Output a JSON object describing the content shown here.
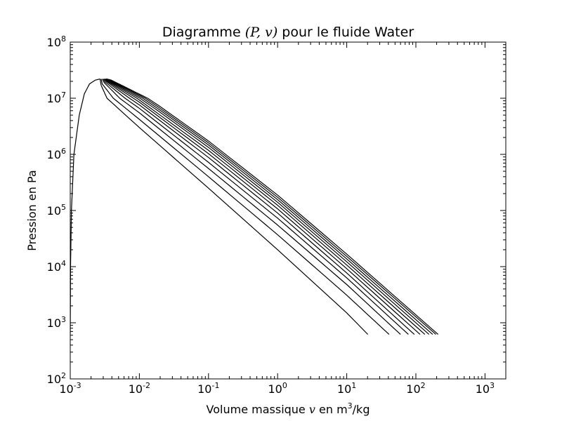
{
  "chart_data": {
    "type": "line",
    "title_parts": [
      "Diagramme ",
      "(P, v)",
      " pour le fluide Water"
    ],
    "xlabel_parts": [
      "Volume massique ",
      "v",
      " en m",
      "3",
      "/kg"
    ],
    "ylabel": "Pression en Pa",
    "xscale": "log",
    "yscale": "log",
    "xlim": [
      0.001,
      2000
    ],
    "ylim": [
      100,
      100000000
    ],
    "x_ticks": [
      {
        "base": "10",
        "exp": "-3",
        "value": 0.001
      },
      {
        "base": "10",
        "exp": "-2",
        "value": 0.01
      },
      {
        "base": "10",
        "exp": "-1",
        "value": 0.1
      },
      {
        "base": "10",
        "exp": "0",
        "value": 1
      },
      {
        "base": "10",
        "exp": "1",
        "value": 10
      },
      {
        "base": "10",
        "exp": "2",
        "value": 100
      },
      {
        "base": "10",
        "exp": "3",
        "value": 1000
      }
    ],
    "y_ticks": [
      {
        "base": "10",
        "exp": "2",
        "value": 100
      },
      {
        "base": "10",
        "exp": "3",
        "value": 1000
      },
      {
        "base": "10",
        "exp": "4",
        "value": 10000
      },
      {
        "base": "10",
        "exp": "5",
        "value": 100000
      },
      {
        "base": "10",
        "exp": "6",
        "value": 1000000
      },
      {
        "base": "10",
        "exp": "7",
        "value": 10000000
      },
      {
        "base": "10",
        "exp": "8",
        "value": 100000000
      }
    ],
    "grid": false,
    "line_color": "#000000",
    "series": [
      {
        "points": [
          [
            0.001,
            620
          ],
          [
            0.00101,
            10000
          ],
          [
            0.00104,
            100000
          ],
          [
            0.00113,
            1000000
          ],
          [
            0.00135,
            5000000
          ],
          [
            0.0016,
            12000000
          ],
          [
            0.0019,
            18000000
          ],
          [
            0.0023,
            21000000
          ],
          [
            0.0027,
            22060000
          ]
        ]
      },
      {
        "points": [
          [
            0.0027,
            22060000
          ],
          [
            0.0028,
            17000000
          ],
          [
            0.0034,
            10000000
          ],
          [
            0.01,
            3000000
          ],
          [
            0.1,
            250000
          ],
          [
            1,
            20000
          ],
          [
            10,
            1500
          ],
          [
            20.2,
            620
          ]
        ]
      },
      {
        "points": [
          [
            0.0028,
            22060000
          ],
          [
            0.0029,
            18000000
          ],
          [
            0.0042,
            10000000
          ],
          [
            0.01,
            4200000
          ],
          [
            0.1,
            400000
          ],
          [
            1,
            37000
          ],
          [
            10,
            3100
          ],
          [
            41,
            620
          ]
        ]
      },
      {
        "points": [
          [
            0.0029,
            22060000
          ],
          [
            0.0031,
            19000000
          ],
          [
            0.0052,
            10000000
          ],
          [
            0.01,
            5500000
          ],
          [
            0.1,
            560000
          ],
          [
            1,
            55000
          ],
          [
            10,
            4800
          ],
          [
            60,
            620
          ]
        ]
      },
      {
        "points": [
          [
            0.003,
            22060000
          ],
          [
            0.0032,
            19500000
          ],
          [
            0.0062,
            10000000
          ],
          [
            0.01,
            6600000
          ],
          [
            0.1,
            720000
          ],
          [
            1,
            73000
          ],
          [
            10,
            6300
          ],
          [
            78,
            620
          ]
        ]
      },
      {
        "points": [
          [
            0.0031,
            22060000
          ],
          [
            0.0033,
            20000000
          ],
          [
            0.0072,
            10000000
          ],
          [
            0.01,
            7600000
          ],
          [
            0.1,
            880000
          ],
          [
            1,
            90000
          ],
          [
            10,
            7700
          ],
          [
            95,
            620
          ]
        ]
      },
      {
        "points": [
          [
            0.0031,
            22060000
          ],
          [
            0.0034,
            20200000
          ],
          [
            0.0082,
            10000000
          ],
          [
            0.01,
            8500000
          ],
          [
            0.1,
            1030000
          ],
          [
            1,
            107000
          ],
          [
            10,
            9200
          ],
          [
            115,
            620
          ]
        ]
      },
      {
        "points": [
          [
            0.0032,
            22060000
          ],
          [
            0.0035,
            20400000
          ],
          [
            0.0092,
            10000000
          ],
          [
            0.01,
            9300000
          ],
          [
            0.1,
            1180000
          ],
          [
            1,
            124000
          ],
          [
            10,
            10700
          ],
          [
            135,
            620
          ]
        ]
      },
      {
        "points": [
          [
            0.0032,
            22060000
          ],
          [
            0.0036,
            20600000
          ],
          [
            0.0102,
            10000000
          ],
          [
            0.02,
            5600000
          ],
          [
            0.1,
            1330000
          ],
          [
            1,
            140000
          ],
          [
            10,
            12200
          ],
          [
            155,
            620
          ]
        ]
      },
      {
        "points": [
          [
            0.0033,
            22060000
          ],
          [
            0.0037,
            20800000
          ],
          [
            0.0112,
            10000000
          ],
          [
            0.02,
            6100000
          ],
          [
            0.1,
            1470000
          ],
          [
            1,
            156000
          ],
          [
            10,
            13700
          ],
          [
            175,
            620
          ]
        ]
      },
      {
        "points": [
          [
            0.0033,
            22060000
          ],
          [
            0.0038,
            21000000
          ],
          [
            0.0122,
            10000000
          ],
          [
            0.02,
            6600000
          ],
          [
            0.1,
            1600000
          ],
          [
            1,
            172000
          ],
          [
            10,
            15200
          ],
          [
            195,
            620
          ]
        ]
      },
      {
        "points": [
          [
            0.0034,
            22060000
          ],
          [
            0.0039,
            21100000
          ],
          [
            0.0132,
            10000000
          ],
          [
            0.02,
            7100000
          ],
          [
            0.1,
            1730000
          ],
          [
            1,
            188000
          ],
          [
            10,
            16700
          ],
          [
            210,
            620
          ]
        ]
      }
    ]
  }
}
